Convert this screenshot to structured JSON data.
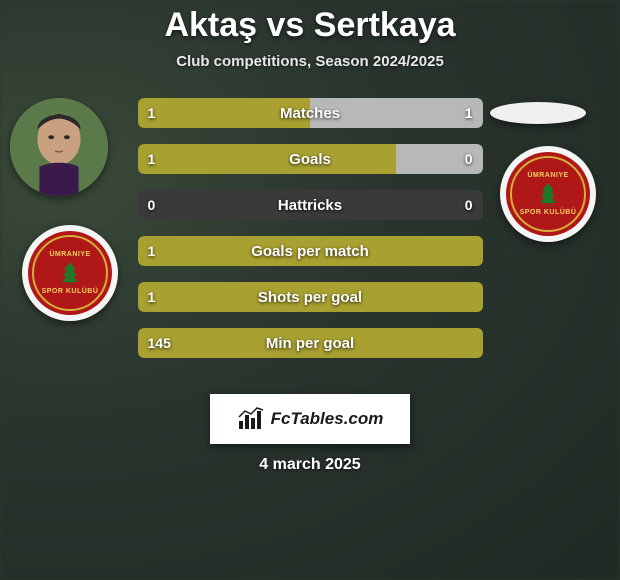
{
  "title": "Aktaş vs Sertkaya",
  "subtitle": "Club competitions, Season 2024/2025",
  "date": "4 march 2025",
  "watermark": "FcTables.com",
  "colors": {
    "left_fill": "#a8a030",
    "right_fill": "#b8b8b8",
    "bar_bg": "#3a3a3a",
    "text": "#ffffff",
    "badge_bg": "#b01818",
    "badge_border": "#f5f5f5",
    "badge_accent": "#d4af37",
    "tree_green": "#1a7a2a"
  },
  "bar_style": {
    "height": 30,
    "radius": 6,
    "gap": 16,
    "label_fontsize": 15,
    "value_fontsize": 14,
    "font_weight": 700
  },
  "stats": [
    {
      "label": "Matches",
      "left_value": "1",
      "right_value": "1",
      "left_pct": 50,
      "right_pct": 50
    },
    {
      "label": "Goals",
      "left_value": "1",
      "right_value": "0",
      "left_pct": 75,
      "right_pct": 25
    },
    {
      "label": "Hattricks",
      "left_value": "0",
      "right_value": "0",
      "left_pct": 0,
      "right_pct": 0
    },
    {
      "label": "Goals per match",
      "left_value": "1",
      "right_value": "",
      "left_pct": 100,
      "right_pct": 0
    },
    {
      "label": "Shots per goal",
      "left_value": "1",
      "right_value": "",
      "left_pct": 100,
      "right_pct": 0
    },
    {
      "label": "Min per goal",
      "left_value": "145",
      "right_value": "",
      "left_pct": 100,
      "right_pct": 0
    }
  ],
  "badge": {
    "top_text": "ÜMRANIYE",
    "bottom_text": "SPOR KULÜBÜ"
  }
}
